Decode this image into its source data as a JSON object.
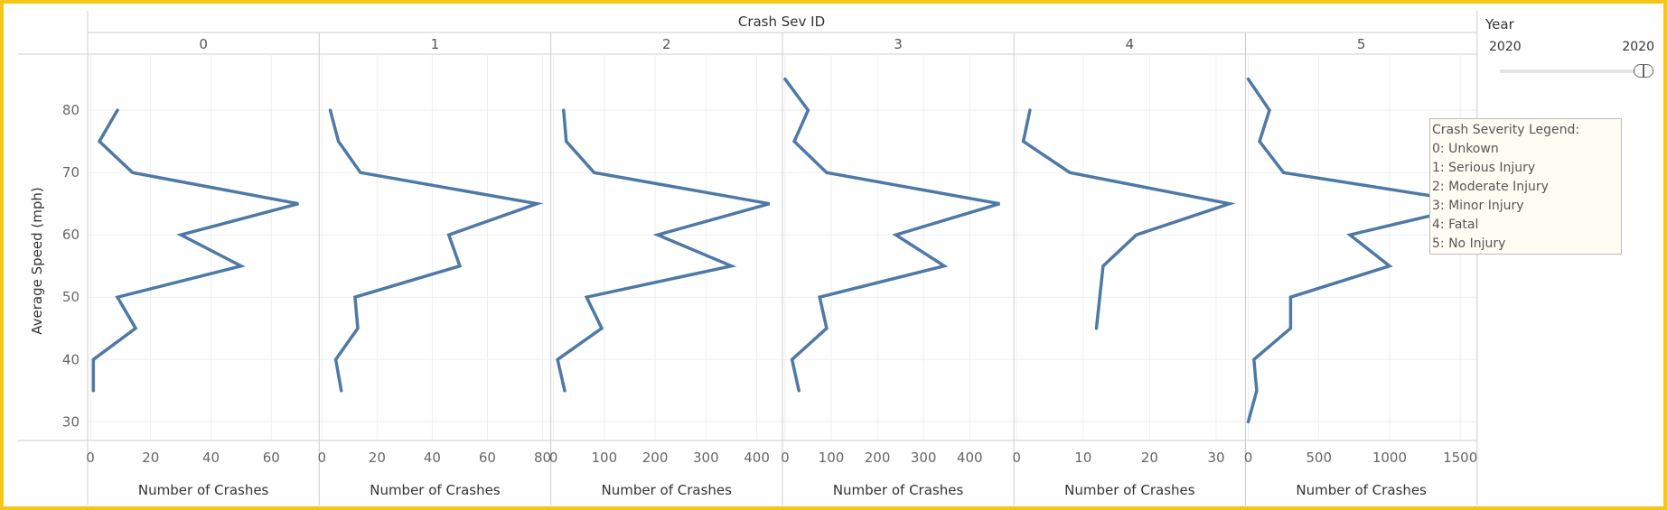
{
  "chart_data": {
    "type": "line",
    "column_header": "Crash Sev ID",
    "ylabel": "Average Speed (mph)",
    "ylim": [
      27,
      89
    ],
    "yticks": [
      30,
      40,
      50,
      60,
      70,
      80
    ],
    "grid": true,
    "facets": [
      {
        "label": "0",
        "xlabel": "Number of Crashes",
        "xlim": [
          0,
          75
        ],
        "xticks": [
          0,
          20,
          40,
          60
        ],
        "points": [
          {
            "x": 9,
            "y": 80
          },
          {
            "x": 3,
            "y": 75
          },
          {
            "x": 14,
            "y": 70
          },
          {
            "x": 69,
            "y": 65
          },
          {
            "x": 30,
            "y": 60
          },
          {
            "x": 50,
            "y": 55
          },
          {
            "x": 9,
            "y": 50
          },
          {
            "x": 15,
            "y": 45
          },
          {
            "x": 1,
            "y": 40
          },
          {
            "x": 1,
            "y": 35
          }
        ]
      },
      {
        "label": "1",
        "xlabel": "Number of Crashes",
        "xlim": [
          0,
          82
        ],
        "xticks": [
          0,
          20,
          40,
          60,
          80
        ],
        "points": [
          {
            "x": 3,
            "y": 80
          },
          {
            "x": 6,
            "y": 75
          },
          {
            "x": 14,
            "y": 70
          },
          {
            "x": 78,
            "y": 65
          },
          {
            "x": 46,
            "y": 60
          },
          {
            "x": 50,
            "y": 55
          },
          {
            "x": 12,
            "y": 50
          },
          {
            "x": 13,
            "y": 45
          },
          {
            "x": 5,
            "y": 40
          },
          {
            "x": 7,
            "y": 35
          }
        ]
      },
      {
        "label": "2",
        "xlabel": "Number of Crashes",
        "xlim": [
          0,
          445
        ],
        "xticks": [
          0,
          100,
          200,
          300,
          400
        ],
        "points": [
          {
            "x": 20,
            "y": 80
          },
          {
            "x": 25,
            "y": 75
          },
          {
            "x": 80,
            "y": 70
          },
          {
            "x": 425,
            "y": 65
          },
          {
            "x": 205,
            "y": 60
          },
          {
            "x": 350,
            "y": 55
          },
          {
            "x": 65,
            "y": 50
          },
          {
            "x": 95,
            "y": 45
          },
          {
            "x": 8,
            "y": 40
          },
          {
            "x": 22,
            "y": 35
          }
        ]
      },
      {
        "label": "3",
        "xlabel": "Number of Crashes",
        "xlim": [
          0,
          490
        ],
        "xticks": [
          0,
          100,
          200,
          300,
          400
        ],
        "points": [
          {
            "x": 0,
            "y": 85
          },
          {
            "x": 50,
            "y": 80
          },
          {
            "x": 20,
            "y": 75
          },
          {
            "x": 90,
            "y": 70
          },
          {
            "x": 465,
            "y": 65
          },
          {
            "x": 240,
            "y": 60
          },
          {
            "x": 345,
            "y": 55
          },
          {
            "x": 75,
            "y": 50
          },
          {
            "x": 90,
            "y": 45
          },
          {
            "x": 15,
            "y": 40
          },
          {
            "x": 30,
            "y": 35
          }
        ]
      },
      {
        "label": "4",
        "xlabel": "Number of Crashes",
        "xlim": [
          0,
          34
        ],
        "xticks": [
          0,
          10,
          20,
          30
        ],
        "points": [
          {
            "x": 2,
            "y": 80
          },
          {
            "x": 1,
            "y": 75
          },
          {
            "x": 8,
            "y": 70
          },
          {
            "x": 32,
            "y": 65
          },
          {
            "x": 18,
            "y": 60
          },
          {
            "x": 13,
            "y": 55
          },
          {
            "x": 12,
            "y": 45
          }
        ]
      },
      {
        "label": "5",
        "xlabel": "Number of Crashes",
        "xlim": [
          0,
          1600
        ],
        "xticks": [
          0,
          500,
          1000,
          1500
        ],
        "points": [
          {
            "x": 0,
            "y": 85
          },
          {
            "x": 150,
            "y": 80
          },
          {
            "x": 80,
            "y": 75
          },
          {
            "x": 250,
            "y": 70
          },
          {
            "x": 1650,
            "y": 65
          },
          {
            "x": 720,
            "y": 60
          },
          {
            "x": 1000,
            "y": 55
          },
          {
            "x": 300,
            "y": 50
          },
          {
            "x": 300,
            "y": 45
          },
          {
            "x": 40,
            "y": 40
          },
          {
            "x": 60,
            "y": 35
          },
          {
            "x": 0,
            "y": 30
          }
        ]
      }
    ],
    "line_color": "#4e79a7"
  },
  "year_filter": {
    "title": "Year",
    "min_label": "2020",
    "max_label": "2020"
  },
  "legend": {
    "title": "Crash Severity Legend:",
    "items": [
      "0: Unkown",
      "1: Serious Injury",
      "2: Moderate Injury",
      "3: Minor Injury",
      "4: Fatal",
      "5: No Injury"
    ]
  },
  "colors": {
    "frame_border": "#f5c518",
    "line": "#4e79a7",
    "grid": "#eeeeee",
    "divider": "#cccccc"
  }
}
